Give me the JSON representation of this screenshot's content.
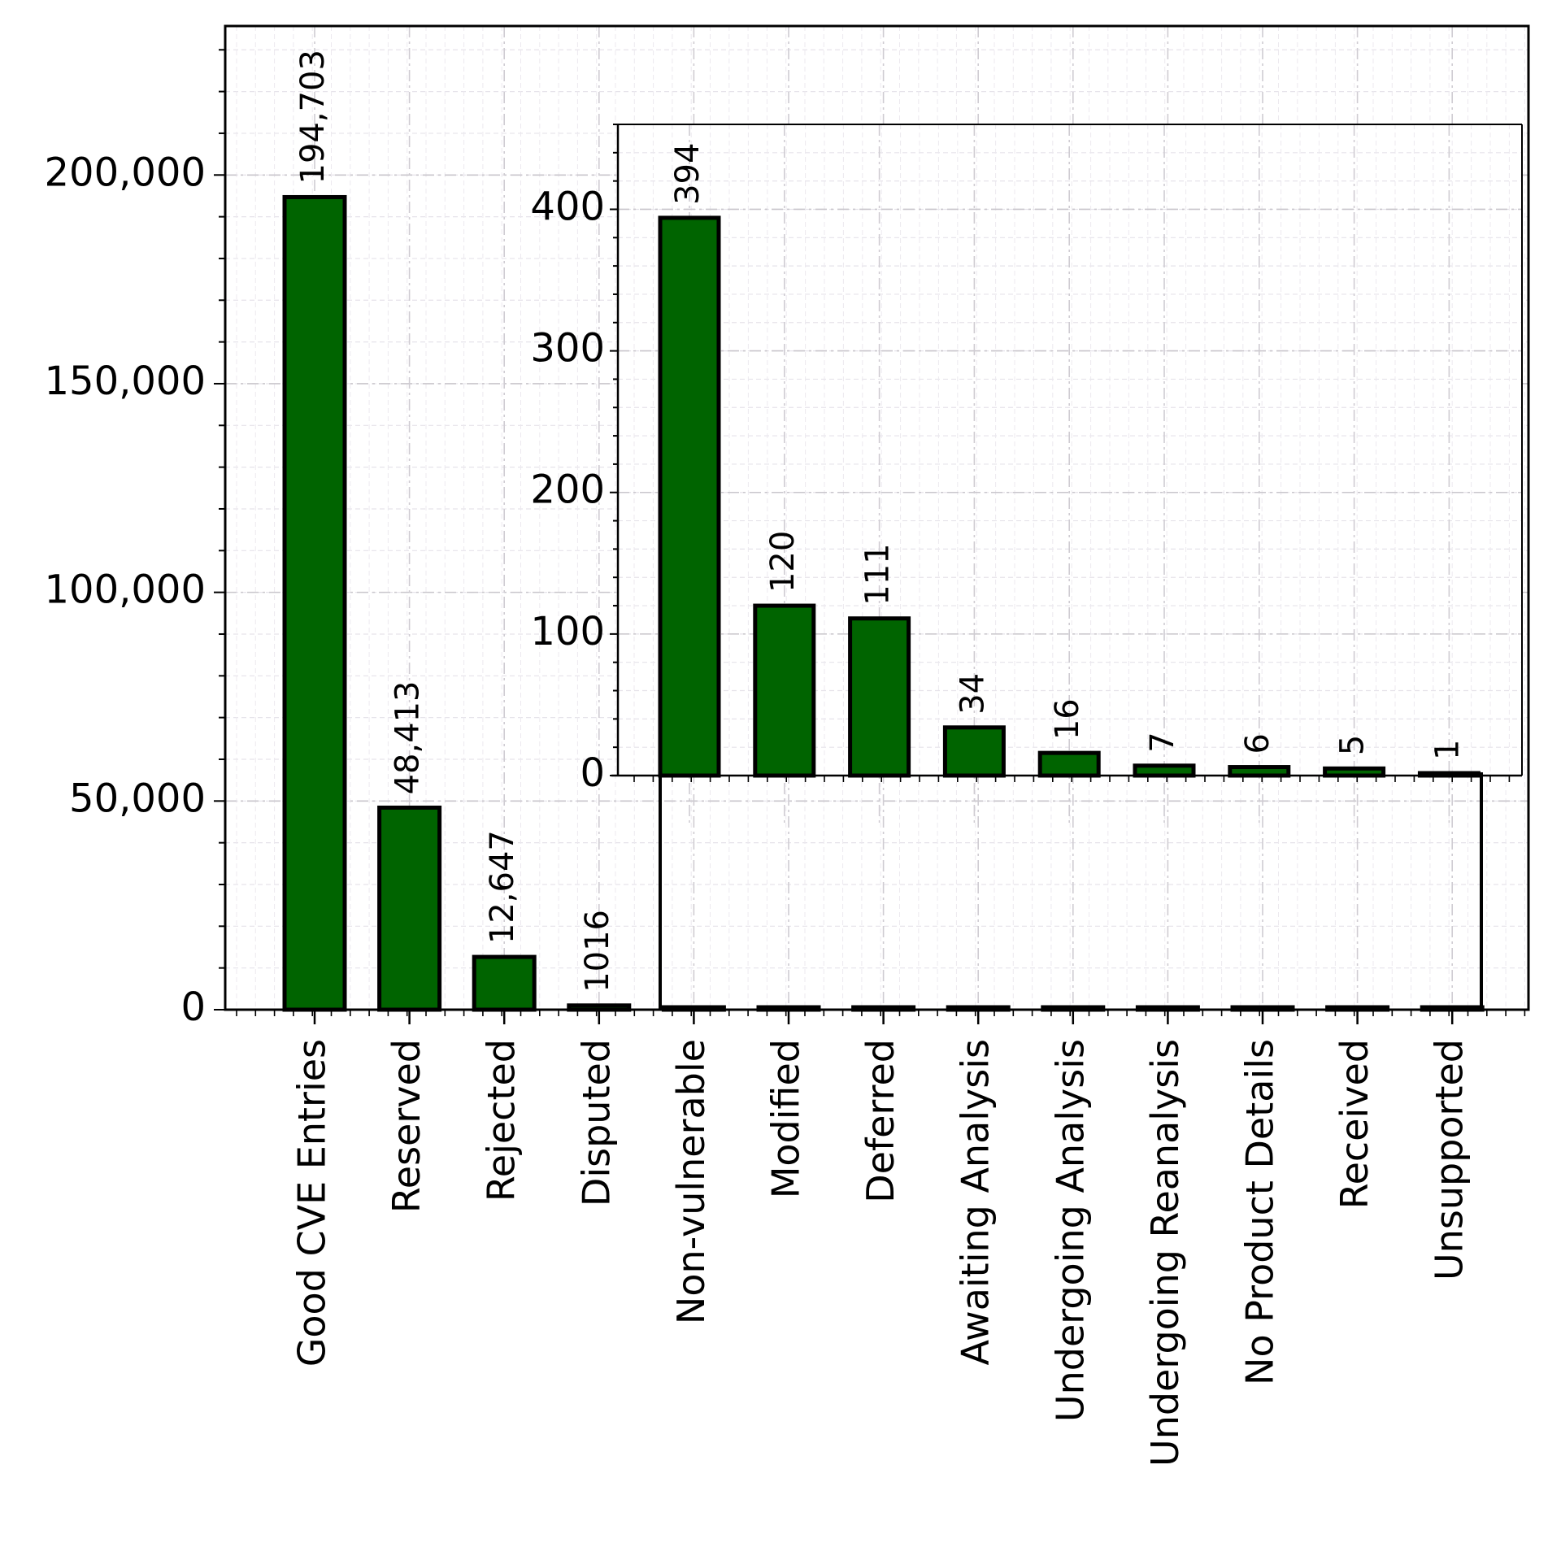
{
  "chart_data": [
    {
      "id": "main",
      "type": "bar",
      "title": "",
      "xlabel": "",
      "ylabel": "",
      "categories": [
        "Good CVE Entries",
        "Reserved",
        "Rejected",
        "Disputed",
        "Non-vulnerable",
        "Modified",
        "Deferred",
        "Awaiting Analysis",
        "Undergoing Analysis",
        "Undergoing Reanalysis",
        "No Product Details",
        "Received",
        "Unsupported"
      ],
      "values": [
        194703,
        48413,
        12647,
        1016,
        394,
        120,
        111,
        34,
        16,
        7,
        6,
        5,
        1
      ],
      "value_labels": [
        "194,703",
        "48,413",
        "12,647",
        "1016",
        "",
        "",
        "",
        "",
        "",
        "",
        "",
        "",
        ""
      ],
      "ylim": [
        0,
        235700
      ],
      "yticks": [
        0,
        50000,
        100000,
        150000,
        200000
      ],
      "ytick_labels": [
        "0",
        "50,000",
        "100,000",
        "150,000",
        "200,000"
      ],
      "grid": true,
      "bar_color": "#006400",
      "edge_color": "#000000"
    },
    {
      "id": "inset",
      "type": "bar",
      "title": "",
      "categories": [
        "Non-vulnerable",
        "Modified",
        "Deferred",
        "Awaiting Analysis",
        "Undergoing Analysis",
        "Undergoing Reanalysis",
        "No Product Details",
        "Received",
        "Unsupported"
      ],
      "values": [
        394,
        120,
        111,
        34,
        16,
        7,
        6,
        5,
        1
      ],
      "value_labels": [
        "394",
        "120",
        "111",
        "34",
        "16",
        "7",
        "6",
        "5",
        "1"
      ],
      "ylim": [
        0,
        460
      ],
      "yticks": [
        0,
        100,
        200,
        300,
        400
      ],
      "ytick_labels": [
        "0",
        "100",
        "200",
        "300",
        "400"
      ],
      "grid": true,
      "bar_color": "#006400",
      "edge_color": "#000000",
      "note": "zoomed inset of the small categories"
    }
  ]
}
